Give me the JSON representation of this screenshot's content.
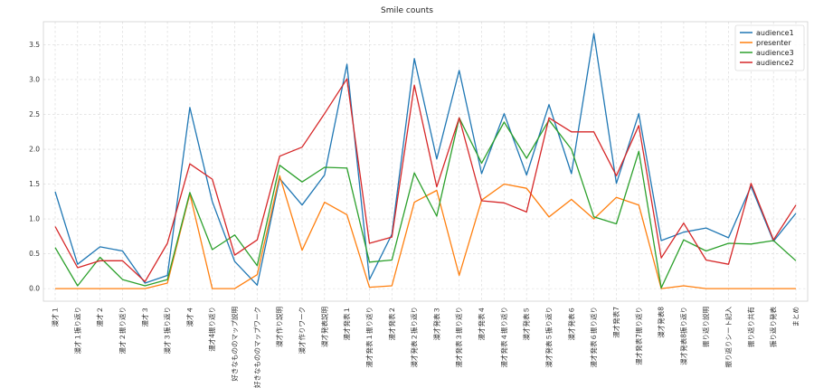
{
  "chart_data": {
    "type": "line",
    "title": "Smile counts",
    "xlabel": "",
    "ylabel": "",
    "ylim": [
      -0.18,
      3.83
    ],
    "yticks": [
      0.0,
      0.5,
      1.0,
      1.5,
      2.0,
      2.5,
      3.0,
      3.5
    ],
    "ytick_labels": [
      "0.0",
      "0.5",
      "1.0",
      "1.5",
      "2.0",
      "2.5",
      "3.0",
      "3.5"
    ],
    "grid": true,
    "legend_position": "top-right",
    "categories": [
      "漫才１",
      "漫才１振り返り",
      "漫才２",
      "漫才２振り返り",
      "漫才３",
      "漫才３振り返り",
      "漫才４",
      "漫才4振り返り",
      "好きなもののマップ説明",
      "好きなもののマップワーク",
      "漫才作り説明",
      "漫才作りワーク",
      "漫才発表説明",
      "漫才発表１",
      "漫才発表１振り返り",
      "漫才発表２",
      "漫才発表２振り返り",
      "漫才発表３",
      "漫才発表３振り返り",
      "漫才発表４",
      "漫才発表４振り返り",
      "漫才発表５",
      "漫才発表５振り返り",
      "漫才発表６",
      "漫才発表６振り返り",
      "漫才発表7",
      "漫才発表7振り返り",
      "漫才発表8",
      "漫才発表8振り返り",
      "振り返り説明",
      "振り返りシート記入",
      "振り返り共有",
      "振り返り発表",
      "まとめ"
    ],
    "series": [
      {
        "name": "audience1",
        "color": "#1f77b4",
        "values": [
          1.39,
          0.35,
          0.6,
          0.54,
          0.08,
          0.19,
          2.6,
          1.25,
          0.39,
          0.05,
          1.58,
          1.2,
          1.63,
          3.22,
          0.13,
          0.78,
          3.3,
          1.86,
          3.13,
          1.65,
          2.51,
          1.63,
          2.64,
          1.65,
          3.66,
          1.51,
          2.51,
          0.69,
          0.81,
          0.87,
          0.73,
          1.47,
          0.68,
          1.08
        ]
      },
      {
        "name": "presenter",
        "color": "#ff7f0e",
        "values": [
          0.0,
          0.0,
          0.0,
          0.0,
          0.0,
          0.08,
          1.36,
          0.0,
          0.0,
          0.2,
          1.62,
          0.55,
          1.24,
          1.06,
          0.02,
          0.04,
          1.24,
          1.41,
          0.19,
          1.27,
          1.5,
          1.44,
          1.03,
          1.28,
          1.0,
          1.31,
          1.2,
          0.0,
          0.04,
          0.0,
          0.0,
          0.0,
          0.0,
          0.0
        ]
      },
      {
        "name": "audience3",
        "color": "#2ca02c",
        "values": [
          0.59,
          0.04,
          0.45,
          0.13,
          0.04,
          0.13,
          1.38,
          0.56,
          0.77,
          0.33,
          1.77,
          1.53,
          1.74,
          1.73,
          0.38,
          0.41,
          1.66,
          1.04,
          2.45,
          1.8,
          2.39,
          1.87,
          2.42,
          2.0,
          1.03,
          0.93,
          1.97,
          0.01,
          0.7,
          0.54,
          0.65,
          0.64,
          0.69,
          0.4
        ]
      },
      {
        "name": "audience2",
        "color": "#d62728",
        "values": [
          0.89,
          0.3,
          0.4,
          0.4,
          0.1,
          0.65,
          1.79,
          1.57,
          0.48,
          0.7,
          1.9,
          2.03,
          2.51,
          3.01,
          0.65,
          0.74,
          2.92,
          1.46,
          2.45,
          1.26,
          1.23,
          1.1,
          2.45,
          2.25,
          2.25,
          1.62,
          2.34,
          0.44,
          0.94,
          0.41,
          0.35,
          1.51,
          0.7,
          1.2
        ]
      }
    ]
  }
}
